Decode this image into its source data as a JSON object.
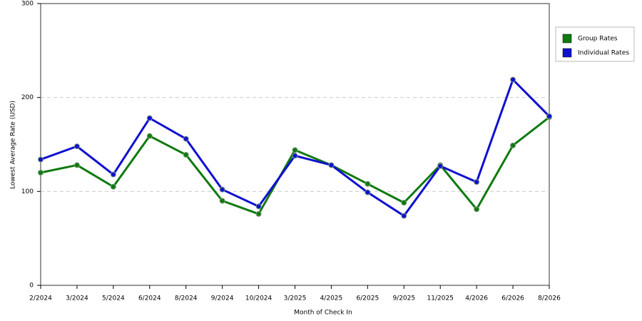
{
  "chart_data": {
    "type": "line",
    "x_label": "Month of Check In",
    "y_label": "Lowest Average Rate (USD)",
    "categories": [
      "2/2024",
      "3/2024",
      "5/2024",
      "6/2024",
      "8/2024",
      "9/2024",
      "10/2024",
      "3/2025",
      "4/2025",
      "6/2025",
      "9/2025",
      "11/2025",
      "4/2026",
      "6/2026",
      "8/2026"
    ],
    "series": [
      {
        "name": "Group Rates",
        "color": "#0f7a0f",
        "values": [
          120,
          128,
          105,
          159,
          139,
          90,
          76,
          144,
          128,
          108,
          88,
          128,
          81,
          149,
          179
        ]
      },
      {
        "name": "Individual Rates",
        "color": "#1010d0",
        "values": [
          134,
          148,
          118,
          178,
          156,
          102,
          84,
          138,
          128,
          99,
          74,
          127,
          110,
          219,
          180
        ]
      }
    ],
    "ylim": [
      0,
      300
    ],
    "yticks": [
      0,
      100,
      200,
      300
    ],
    "grid": true,
    "legend": "right"
  }
}
